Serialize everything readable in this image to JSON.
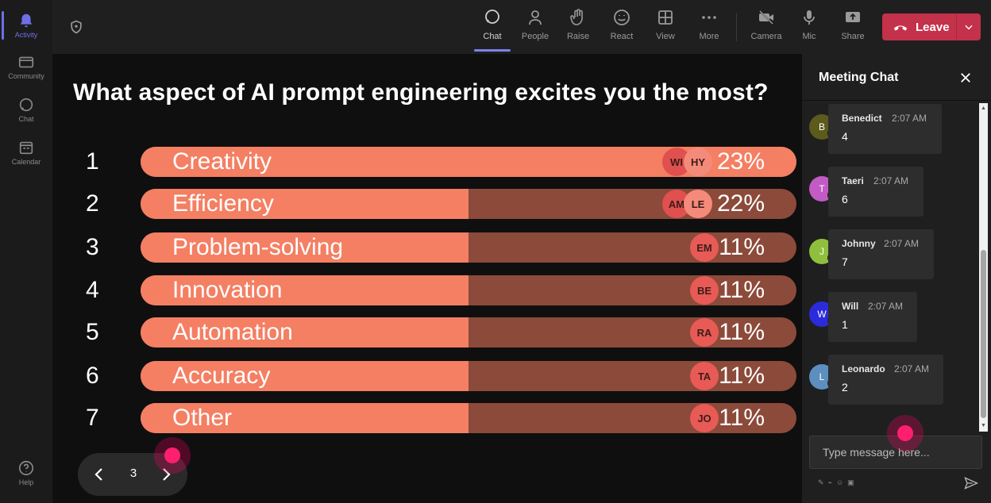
{
  "rail": {
    "items": [
      {
        "label": "Activity",
        "icon": "bell-icon",
        "active": true
      },
      {
        "label": "Community",
        "icon": "community-icon",
        "active": false
      },
      {
        "label": "Chat",
        "icon": "chat-icon",
        "active": false
      },
      {
        "label": "Calendar",
        "icon": "calendar-icon",
        "active": false
      }
    ],
    "help": {
      "label": "Help",
      "icon": "help-icon"
    }
  },
  "toolbar": {
    "chat": "Chat",
    "people": "People",
    "raise": "Raise",
    "react": "React",
    "view": "View",
    "more": "More",
    "camera": "Camera",
    "mic": "Mic",
    "share": "Share",
    "leave": "Leave"
  },
  "poll": {
    "question": "What aspect of AI prompt engineering excites you the most?",
    "options": [
      {
        "num": "1",
        "label": "Creativity",
        "percent": "23%",
        "fill": 1.0,
        "avatars": [
          "WI",
          "HY"
        ]
      },
      {
        "num": "2",
        "label": "Efficiency",
        "percent": "22%",
        "fill": 0.5,
        "avatars": [
          "AM",
          "LE"
        ]
      },
      {
        "num": "3",
        "label": "Problem-solving",
        "percent": "11%",
        "fill": 0.5,
        "avatars": [
          "EM"
        ]
      },
      {
        "num": "4",
        "label": "Innovation",
        "percent": "11%",
        "fill": 0.5,
        "avatars": [
          "BE"
        ]
      },
      {
        "num": "5",
        "label": "Automation",
        "percent": "11%",
        "fill": 0.5,
        "avatars": [
          "RA"
        ]
      },
      {
        "num": "6",
        "label": "Accuracy",
        "percent": "11%",
        "fill": 0.5,
        "avatars": [
          "TA"
        ]
      },
      {
        "num": "7",
        "label": "Other",
        "percent": "11%",
        "fill": 0.5,
        "avatars": [
          "JO"
        ]
      }
    ]
  },
  "pager": {
    "page": "3"
  },
  "chat": {
    "title": "Meeting Chat",
    "messages": [
      {
        "initial": "B",
        "name": "Benedict",
        "time": "2:07 AM",
        "text": "4",
        "color": "#5c5a1c"
      },
      {
        "initial": "T",
        "name": "Taeri",
        "time": "2:07 AM",
        "text": "6",
        "color": "#c25bc4"
      },
      {
        "initial": "J",
        "name": "Johnny",
        "time": "2:07 AM",
        "text": "7",
        "color": "#8fbf3c"
      },
      {
        "initial": "W",
        "name": "Will",
        "time": "2:07 AM",
        "text": "1",
        "color": "#2b2bdc"
      },
      {
        "initial": "L",
        "name": "Leonardo",
        "time": "2:07 AM",
        "text": "2",
        "color": "#5c8fbf"
      }
    ],
    "input_placeholder": "Type message here..."
  }
}
